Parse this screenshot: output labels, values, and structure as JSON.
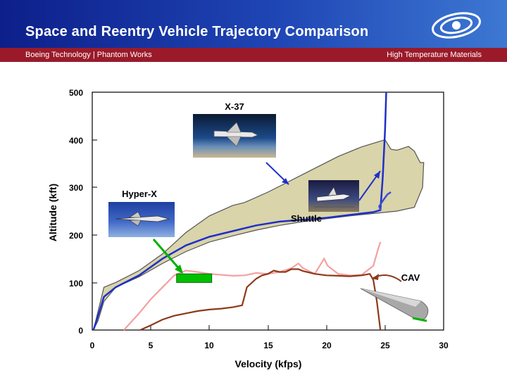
{
  "header": {
    "title": "Space and Reentry Vehicle Trajectory Comparison",
    "subtitle_left": "Boeing Technology | Phantom Works",
    "subtitle_right": "High Temperature Materials",
    "logo_icon": "boeing-logo-icon"
  },
  "colors": {
    "header_blue": "#1f46b5",
    "subbar_red": "#9a1a2a",
    "band_fill": "#d9d4aa",
    "x37_blue": "#1f2fc8",
    "shuttle_blue": "#3b4fd8",
    "hyperx_pink": "#f4a0a0",
    "cav_brown": "#8b3a1a",
    "marker_green": "#00c000"
  },
  "chart_data": {
    "type": "line",
    "title": "",
    "xlabel": "Velocity (kfps)",
    "ylabel": "Altitude (kft)",
    "xlim": [
      0,
      30
    ],
    "ylim": [
      0,
      500
    ],
    "x_ticks": [
      "0",
      "5",
      "10",
      "15",
      "20",
      "25",
      "30"
    ],
    "y_ticks": [
      "0",
      "100",
      "200",
      "300",
      "400",
      "500"
    ],
    "grid": false,
    "series": [
      {
        "name": "X-37",
        "color": "#1f2fc8",
        "points": [
          [
            0.1,
            0
          ],
          [
            0.5,
            30
          ],
          [
            1,
            70
          ],
          [
            2,
            90
          ],
          [
            4,
            115
          ],
          [
            6,
            150
          ],
          [
            8,
            178
          ],
          [
            10,
            196
          ],
          [
            12,
            208
          ],
          [
            14,
            220
          ],
          [
            16,
            228
          ],
          [
            18,
            232
          ],
          [
            20,
            236
          ],
          [
            22,
            242
          ],
          [
            24,
            248
          ],
          [
            24.6,
            252
          ],
          [
            24.8,
            320
          ],
          [
            25.0,
            420
          ],
          [
            25.1,
            500
          ]
        ]
      },
      {
        "name": "Shuttle",
        "color": "#3b4fd8",
        "points": [
          [
            24.6,
            252
          ],
          [
            24.5,
            260
          ],
          [
            24.9,
            275
          ],
          [
            25.2,
            285
          ],
          [
            25.5,
            290
          ]
        ]
      },
      {
        "name": "Hyper-X",
        "color": "#f4a0a0",
        "points": [
          [
            2.7,
            0
          ],
          [
            4,
            35
          ],
          [
            5,
            65
          ],
          [
            6,
            90
          ],
          [
            7,
            115
          ],
          [
            8,
            125
          ],
          [
            9,
            122
          ],
          [
            10,
            118
          ],
          [
            12,
            114
          ],
          [
            13,
            115
          ],
          [
            14,
            120
          ],
          [
            15,
            118
          ],
          [
            16,
            122
          ],
          [
            17,
            130
          ],
          [
            17.6,
            140
          ],
          [
            18,
            130
          ],
          [
            19,
            118
          ],
          [
            19.8,
            150
          ],
          [
            20.1,
            135
          ],
          [
            21,
            118
          ],
          [
            22,
            115
          ],
          [
            23,
            116
          ],
          [
            24,
            135
          ],
          [
            24.4,
            170
          ],
          [
            24.6,
            185
          ]
        ]
      },
      {
        "name": "CAV",
        "color": "#8b3a1a",
        "points": [
          [
            4.1,
            0
          ],
          [
            5,
            10
          ],
          [
            6,
            22
          ],
          [
            7,
            30
          ],
          [
            8,
            35
          ],
          [
            9,
            40
          ],
          [
            10,
            43
          ],
          [
            11,
            45
          ],
          [
            12,
            48
          ],
          [
            12.8,
            52
          ],
          [
            13.2,
            90
          ],
          [
            14,
            108
          ],
          [
            14.5,
            115
          ],
          [
            15,
            118
          ],
          [
            15.5,
            125
          ],
          [
            16,
            122
          ],
          [
            16.5,
            122
          ],
          [
            17,
            128
          ],
          [
            17.6,
            128
          ],
          [
            18,
            124
          ],
          [
            19,
            118
          ],
          [
            20,
            115
          ],
          [
            21,
            114
          ],
          [
            22,
            113
          ],
          [
            23,
            115
          ],
          [
            23.7,
            118
          ],
          [
            24,
            105
          ],
          [
            24.3,
            60
          ],
          [
            24.6,
            0
          ]
        ]
      }
    ],
    "envelope": {
      "upper": [
        [
          0.1,
          0
        ],
        [
          1,
          90
        ],
        [
          2,
          100
        ],
        [
          4,
          125
        ],
        [
          6,
          160
        ],
        [
          8,
          205
        ],
        [
          10,
          240
        ],
        [
          12,
          262
        ],
        [
          13,
          268
        ],
        [
          15,
          290
        ],
        [
          17,
          315
        ],
        [
          19,
          340
        ],
        [
          21,
          365
        ],
        [
          23,
          385
        ],
        [
          25,
          400
        ],
        [
          25.5,
          380
        ],
        [
          26,
          378
        ],
        [
          26.5,
          382
        ],
        [
          27,
          386
        ],
        [
          27.5,
          376
        ],
        [
          28,
          352
        ]
      ],
      "lower": [
        [
          0.1,
          0
        ],
        [
          0.5,
          20
        ],
        [
          1,
          60
        ],
        [
          2,
          90
        ],
        [
          4,
          112
        ],
        [
          6,
          140
        ],
        [
          8,
          165
        ],
        [
          10,
          185
        ],
        [
          12,
          198
        ],
        [
          14,
          210
        ],
        [
          16,
          220
        ],
        [
          18,
          228
        ],
        [
          20,
          234
        ],
        [
          22,
          240
        ],
        [
          24,
          245
        ],
        [
          26,
          250
        ],
        [
          27.5,
          258
        ],
        [
          28.2,
          300
        ],
        [
          28.3,
          352
        ]
      ],
      "fill": "#d9d4aa"
    },
    "annotations": [
      {
        "text": "X-37",
        "x": 11.5,
        "y": 480
      },
      {
        "text": "Hyper-X",
        "x": 4.2,
        "y": 285
      },
      {
        "text": "Shuttle",
        "x": 18.3,
        "y": 225
      },
      {
        "text": "CAV",
        "x": 27,
        "y": 105
      }
    ],
    "test_box": {
      "x_from": 7.2,
      "x_to": 10.2,
      "y_from": 100,
      "y_to": 118,
      "color": "#00c000"
    }
  }
}
